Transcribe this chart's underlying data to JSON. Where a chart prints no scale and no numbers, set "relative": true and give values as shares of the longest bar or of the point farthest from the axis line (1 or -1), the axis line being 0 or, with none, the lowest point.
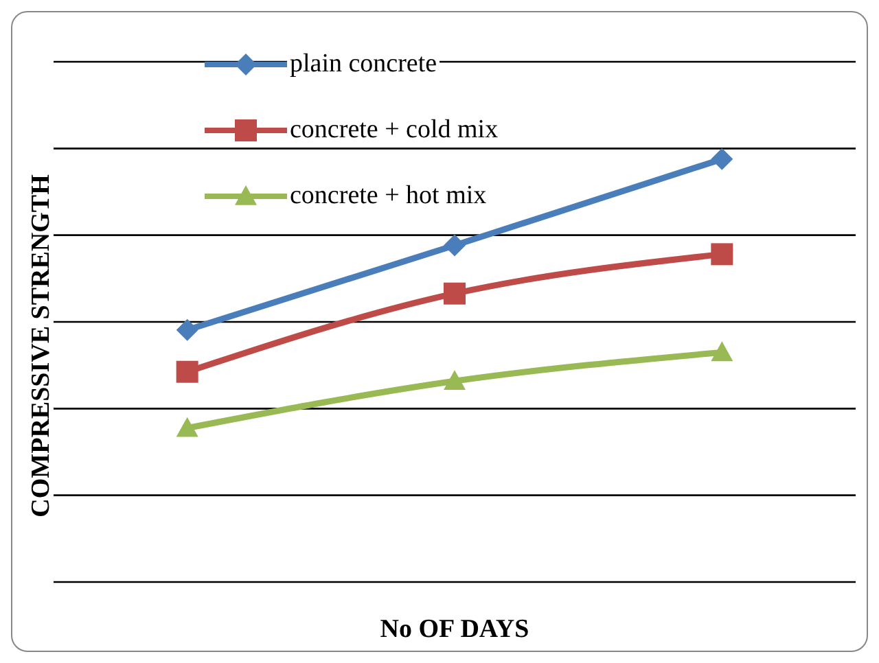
{
  "chart_data": {
    "type": "line",
    "relative": true,
    "xlabel": "No OF DAYS",
    "ylabel": "COMPRESSIVE STRENGTH",
    "categories": [
      null,
      null,
      null
    ],
    "grid": "y",
    "legend": "top left",
    "line_style": "solid",
    "series": [
      {
        "name": "plain concrete",
        "color": "#4a7ebb",
        "marker": "diamond",
        "values": [
          0.596,
          0.796,
          1
        ]
      },
      {
        "name": "concrete + cold mix",
        "color": "#be4b48",
        "marker": "square",
        "values": [
          0.497,
          0.682,
          0.775
        ]
      },
      {
        "name": "concrete + hot mix",
        "color": "#98b954",
        "marker": "triangle",
        "values": [
          0.364,
          0.475,
          0.543
        ]
      }
    ]
  }
}
